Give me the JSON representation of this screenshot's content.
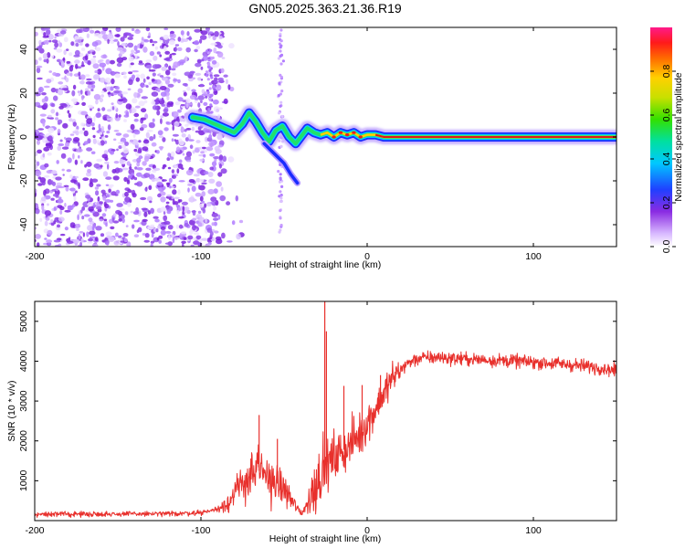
{
  "title": "GN05.2025.363.21.36.R19",
  "colors": {
    "snr_line": "#e8302c",
    "frame": "#000000",
    "scatter": "#8a2be2",
    "ridge_core": "#d81b1b",
    "ridge_mid": "#22e06a",
    "ridge_edge": "#1a3cff"
  },
  "chart_data": [
    {
      "type": "heatmap",
      "name": "spectrogram",
      "xlabel": "Height of straight line (km)",
      "ylabel": "Frequency (Hz)",
      "xlim": [
        -200,
        150
      ],
      "ylim": [
        -50,
        50
      ],
      "xticks": [
        -200,
        -100,
        0,
        100
      ],
      "yticks": [
        -40,
        -20,
        0,
        20,
        40
      ],
      "colorbar": {
        "label": "Normalized spectral amplitude",
        "range": [
          0,
          1
        ],
        "ticks": [
          "0.0",
          "0.2",
          "0.4",
          "0.6",
          "0.8"
        ],
        "tick_values": [
          0.0,
          0.2,
          0.4,
          0.6,
          0.8
        ]
      },
      "ridge": {
        "x": [
          -105,
          -98,
          -92,
          -86,
          -80,
          -75,
          -71,
          -67,
          -63,
          -59,
          -55,
          -51,
          -47,
          -43,
          -40,
          -36,
          -32,
          -28,
          -24,
          -20,
          -16,
          -12,
          -8,
          -4,
          0,
          5,
          10,
          150
        ],
        "y": [
          9,
          8,
          6,
          4,
          2,
          6,
          11,
          7,
          2,
          -2,
          3,
          5,
          0,
          -3,
          0,
          4,
          2,
          1,
          2,
          0,
          2,
          1,
          2,
          0,
          1,
          1,
          0,
          0
        ]
      },
      "ridge_branch": {
        "x": [
          -62,
          -58,
          -54,
          -50,
          -46,
          -42
        ],
        "y": [
          -3,
          -6,
          -9,
          -12,
          -17,
          -21
        ]
      },
      "noise_region_x": [
        -200,
        -87
      ]
    },
    {
      "type": "line",
      "name": "snr",
      "xlabel": "Height of straight line (km)",
      "ylabel": "SNR (10 * v/v)",
      "xlim": [
        -200,
        150
      ],
      "ylim": [
        0,
        5500
      ],
      "xticks": [
        -200,
        -100,
        0,
        100
      ],
      "yticks": [
        1000,
        2000,
        3000,
        4000,
        5000
      ],
      "envelope": {
        "x": [
          -200,
          -120,
          -100,
          -90,
          -82,
          -75,
          -70,
          -65,
          -60,
          -55,
          -50,
          -45,
          -40,
          -36,
          -32,
          -28,
          -24,
          -20,
          -16,
          -12,
          -8,
          -4,
          0,
          5,
          10,
          15,
          20,
          25,
          30,
          40,
          60,
          80,
          100,
          120,
          140,
          150
        ],
        "y": [
          160,
          170,
          200,
          290,
          520,
          950,
          1120,
          1250,
          1100,
          960,
          800,
          480,
          180,
          400,
          820,
          1200,
          1400,
          1550,
          1700,
          1850,
          2000,
          2200,
          2450,
          2800,
          3200,
          3550,
          3800,
          3960,
          4060,
          4100,
          4050,
          4020,
          3980,
          3920,
          3840,
          3760
        ]
      },
      "spikes": [
        {
          "x": -25.5,
          "y": 5500
        },
        {
          "x": -24.5,
          "y": 4750
        },
        {
          "x": -65,
          "y": 2650
        },
        {
          "x": -54,
          "y": 2050
        },
        {
          "x": -14,
          "y": 3380
        },
        {
          "x": -3,
          "y": 3400
        },
        {
          "x": 8,
          "y": 3650
        }
      ]
    }
  ]
}
